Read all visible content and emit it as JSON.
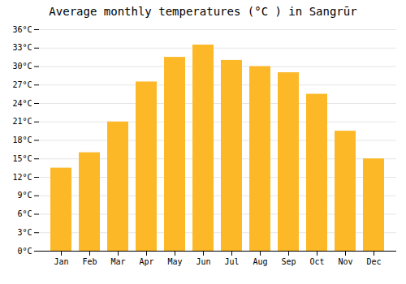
{
  "chart_data": {
    "type": "bar",
    "title": "Average monthly temperatures (°C ) in Sangrūr",
    "categories": [
      "Jan",
      "Feb",
      "Mar",
      "Apr",
      "May",
      "Jun",
      "Jul",
      "Aug",
      "Sep",
      "Oct",
      "Nov",
      "Dec"
    ],
    "values": [
      13.5,
      16.0,
      21.0,
      27.5,
      31.5,
      33.5,
      31.0,
      30.0,
      29.0,
      25.5,
      19.5,
      15.0
    ],
    "color": "#FDB827",
    "ylim": [
      0,
      36
    ],
    "yticks": [
      {
        "value": 0,
        "label": "0°C"
      },
      {
        "value": 3,
        "label": "3°C"
      },
      {
        "value": 6,
        "label": "6°C"
      },
      {
        "value": 9,
        "label": "9°C"
      },
      {
        "value": 12,
        "label": "12°C"
      },
      {
        "value": 15,
        "label": "15°C"
      },
      {
        "value": 18,
        "label": "18°C"
      },
      {
        "value": 21,
        "label": "21°C"
      },
      {
        "value": 24,
        "label": "24°C"
      },
      {
        "value": 27,
        "label": "27°C"
      },
      {
        "value": 30,
        "label": "30°C"
      },
      {
        "value": 33,
        "label": "33°C"
      },
      {
        "value": 36,
        "label": "36°C"
      }
    ],
    "grid": true
  }
}
